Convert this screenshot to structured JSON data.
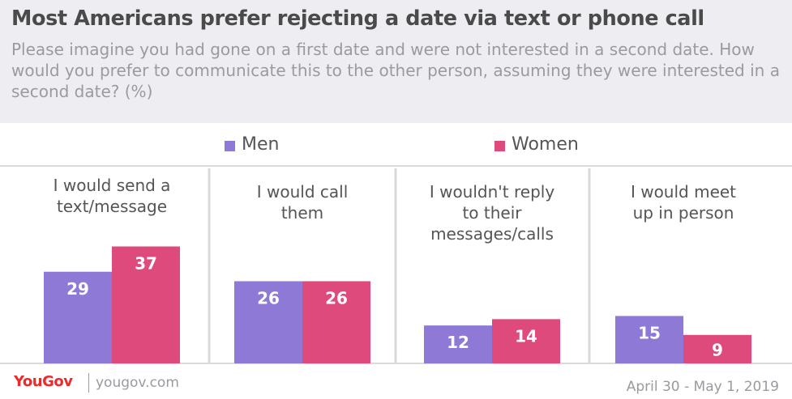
{
  "header": {
    "title": "Most Americans prefer rejecting a date via text or phone call",
    "subtitle": "Please imagine you had gone on a first date and were not interested in a second date. How would you prefer to communicate this to the other person, assuming they were interested in a second date? (%)"
  },
  "legend": {
    "men_label": "Men",
    "women_label": "Women"
  },
  "colors": {
    "men": "#8e79d6",
    "women": "#df4a7d",
    "divider": "#d9d9d9",
    "header_bg": "#ededf2",
    "brand_red": "#ed2a2a"
  },
  "footer": {
    "logo": "YouGov",
    "site": "yougov.com",
    "date_range": "April 30 - May 1, 2019"
  },
  "chart_data": {
    "type": "bar",
    "categories": [
      [
        "I would send a",
        "text/message"
      ],
      [
        "I would call",
        "them"
      ],
      [
        "I wouldn't reply",
        "to their",
        "messages/calls"
      ],
      [
        "I would meet",
        "up in person"
      ]
    ],
    "series": [
      {
        "name": "Men",
        "values": [
          29,
          26,
          12,
          15
        ]
      },
      {
        "name": "Women",
        "values": [
          37,
          26,
          14,
          9
        ]
      }
    ],
    "ylim": [
      0,
      40
    ],
    "grid": false,
    "legend_position": "top"
  }
}
